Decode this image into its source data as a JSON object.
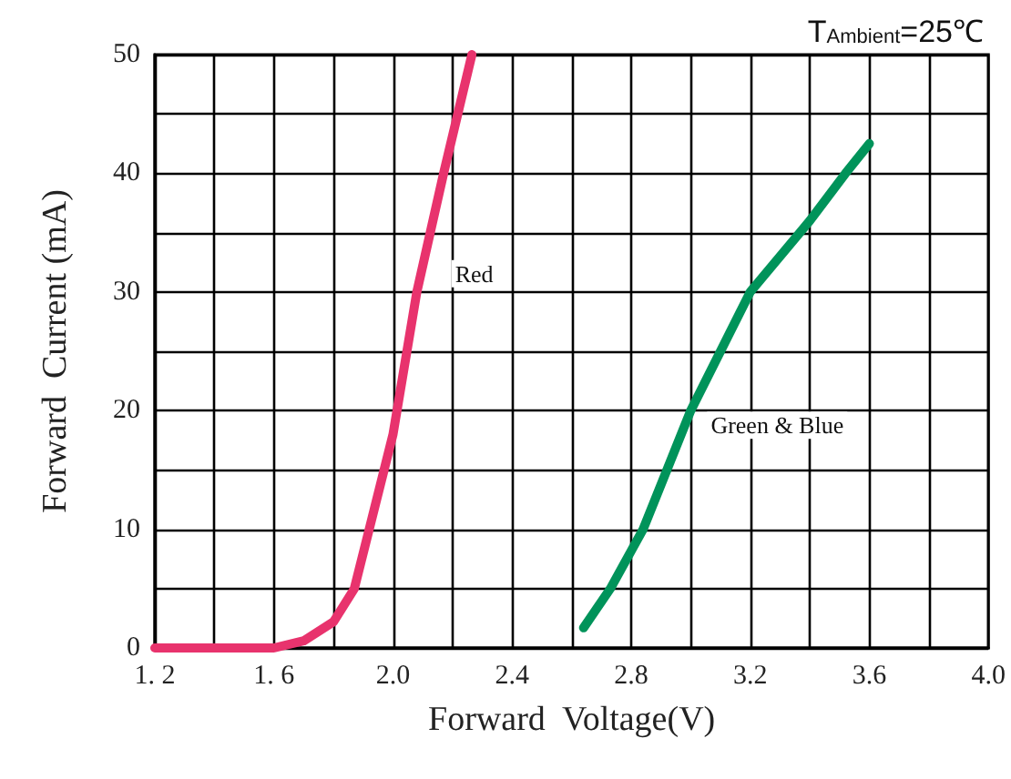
{
  "chart_data": {
    "type": "line",
    "title": "T$_{Ambient}$=25℃",
    "xlabel": "Forward  Voltage(V)",
    "ylabel": "Forward  Current (mA)",
    "series": [
      {
        "name": "Red",
        "color": "#e8336d",
        "x": [
          1.2,
          1.6,
          1.7,
          1.8,
          1.87,
          1.92,
          2.0,
          2.08,
          2.17,
          2.265
        ],
        "values": [
          0,
          0,
          0.6,
          2.2,
          5,
          10,
          18,
          30,
          40,
          50
        ]
      },
      {
        "name": "Green & Blue",
        "color": "#00935a",
        "x": [
          2.64,
          2.73,
          2.84,
          3.0,
          3.2,
          3.4,
          3.52,
          3.6
        ],
        "values": [
          1.7,
          5,
          10,
          20,
          30,
          36,
          40,
          42.5
        ]
      }
    ],
    "xlim": [
      1.2,
      4.0
    ],
    "ylim": [
      0,
      50
    ],
    "xticks": [
      {
        "value": 1.2,
        "label": "1. 2"
      },
      {
        "value": 1.4,
        "label": null
      },
      {
        "value": 1.6,
        "label": "1. 6"
      },
      {
        "value": 1.8,
        "label": null
      },
      {
        "value": 2.0,
        "label": "2.0"
      },
      {
        "value": 2.2,
        "label": null
      },
      {
        "value": 2.4,
        "label": "2.4"
      },
      {
        "value": 2.6,
        "label": null
      },
      {
        "value": 2.8,
        "label": "2.8"
      },
      {
        "value": 3.0,
        "label": null
      },
      {
        "value": 3.2,
        "label": "3.2"
      },
      {
        "value": 3.4,
        "label": null
      },
      {
        "value": 3.6,
        "label": "3.6"
      },
      {
        "value": 3.8,
        "label": null
      },
      {
        "value": 4.0,
        "label": "4.0"
      }
    ],
    "yticks": [
      0,
      {
        "value": 5,
        "label": null
      },
      10,
      {
        "value": 15,
        "label": null
      },
      20,
      {
        "value": 25,
        "label": null
      },
      30,
      {
        "value": 35,
        "label": null
      },
      40,
      {
        "value": 45,
        "label": null
      },
      50
    ],
    "grid": true,
    "marker": "none",
    "line_style": "solid"
  }
}
